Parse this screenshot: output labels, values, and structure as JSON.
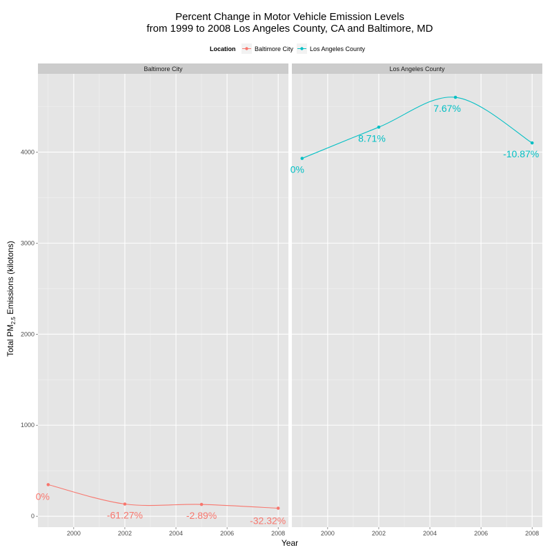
{
  "chart_data": {
    "type": "line",
    "title_line1": "Percent Change in Motor Vehicle Emission Levels",
    "title_line2": "from 1999 to 2008 Los Angeles County, CA and Baltimore, MD",
    "xlabel": "Year",
    "ylabel": {
      "prefix": "Total PM",
      "subscript": "2.5",
      "suffix": " Emissions (kilotons)"
    },
    "legend": {
      "title": "Location",
      "position": "top"
    },
    "x_ticks": [
      "2000",
      "2002",
      "2004",
      "2006",
      "2008"
    ],
    "y_ticks": [
      "0",
      "1000",
      "2000",
      "3000",
      "4000"
    ],
    "xlim": [
      1998.6,
      2008.4
    ],
    "ylim": [
      -120,
      4860
    ],
    "grid": true,
    "series": [
      {
        "name": "Baltimore City",
        "color": "#F8766D",
        "x": [
          1999,
          2002,
          2005,
          2008
        ],
        "y": [
          347,
          134,
          130,
          88
        ],
        "labels": [
          "0%",
          "-61.27%",
          "-2.89%",
          "-32.32%"
        ]
      },
      {
        "name": "Los Angeles County",
        "color": "#00BFC4",
        "x": [
          1999,
          2002,
          2005,
          2008
        ],
        "y": [
          3931,
          4274,
          4602,
          4101
        ],
        "labels": [
          "0%",
          "8.71%",
          "7.67%",
          "-10.87%"
        ]
      }
    ]
  }
}
